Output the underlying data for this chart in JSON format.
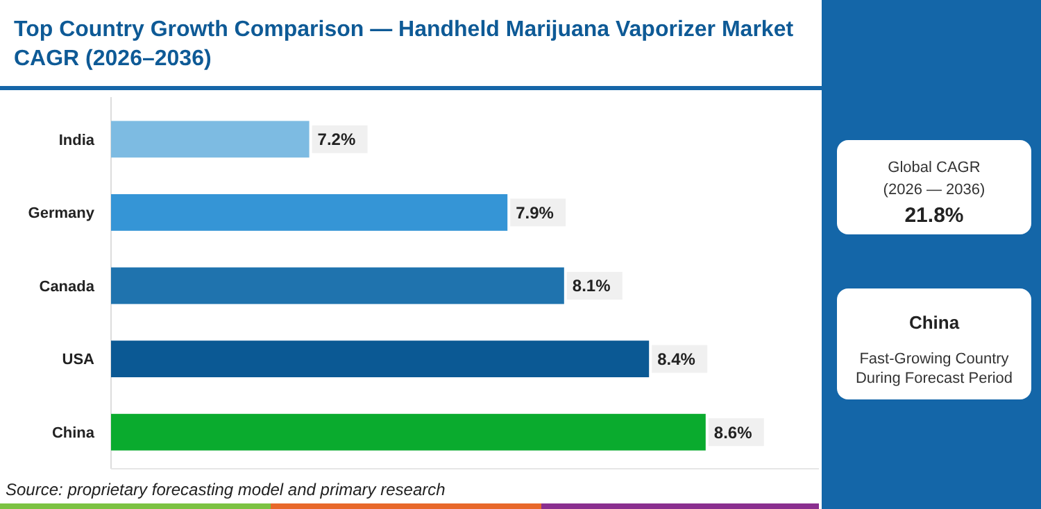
{
  "chart_data": {
    "type": "bar",
    "orientation": "horizontal",
    "title": "Top Country Growth Comparison — Handheld Marijuana Vaporizer Market CAGR (2026–2036)",
    "categories": [
      "India",
      "Germany",
      "Canada",
      "USA",
      "China"
    ],
    "values": [
      7.2,
      7.9,
      8.1,
      8.4,
      8.6
    ],
    "colors": [
      "#7dbbe2",
      "#3595d6",
      "#1f73ae",
      "#0b5994",
      "#0aab2e"
    ],
    "value_labels": [
      "7.2%",
      "7.9%",
      "8.1%",
      "8.4%",
      "8.6%"
    ],
    "xlim": [
      6.5,
      9.0
    ],
    "tick_labels": "y",
    "annotations": [
      "Source: proprietary forecasting model and primary research",
      "Global CAGR",
      "(2026 — 2036)",
      "21.8%",
      "China",
      "Fast-Growing Country During Forecast Period"
    ]
  }
}
